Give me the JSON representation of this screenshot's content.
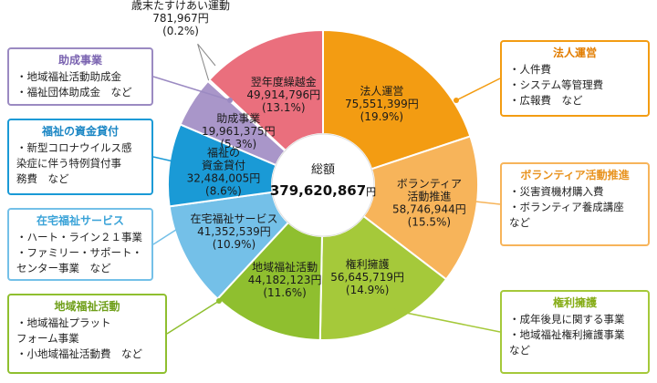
{
  "chart_data": {
    "type": "pie",
    "total_label": "総額",
    "total_value": "379,620,867",
    "total_unit": "円",
    "slices": [
      {
        "name": "法人運営",
        "amount": "75,551,399",
        "percent": 19.9,
        "percent_label": "(19.9%)",
        "color": "#f39c12"
      },
      {
        "name": "ボランティア\n活動推進",
        "amount": "58,746,944",
        "percent": 15.5,
        "percent_label": "(15.5%)",
        "color": "#f7b45a"
      },
      {
        "name": "権利擁護",
        "amount": "56,645,719",
        "percent": 14.9,
        "percent_label": "(14.9%)",
        "color": "#a5c93a"
      },
      {
        "name": "地域福祉活動",
        "amount": "44,182,123",
        "percent": 11.6,
        "percent_label": "(11.6%)",
        "color": "#8fbf2f"
      },
      {
        "name": "在宅福祉サービス",
        "amount": "41,352,539",
        "percent": 10.9,
        "percent_label": "(10.9%)",
        "color": "#74c0e8"
      },
      {
        "name": "福祉の\n資金貸付",
        "amount": "32,484,005",
        "percent": 8.6,
        "percent_label": "(8.6%)",
        "color": "#1a9ad6"
      },
      {
        "name": "助成事業",
        "amount": "19,961,375",
        "percent": 5.3,
        "percent_label": "(5.3%)",
        "color": "#a996c9"
      },
      {
        "name": "歳末たすけあい運動",
        "amount": "781,967",
        "percent": 0.2,
        "percent_label": "(0.2%)",
        "color": "#e86a8a"
      },
      {
        "name": "翌年度繰越金",
        "amount": "49,914,796",
        "percent": 13.1,
        "percent_label": "(13.1%)",
        "color": "#ea6f7d"
      }
    ],
    "unit": "円"
  },
  "callouts": {
    "left": [
      {
        "title": "助成事業",
        "items": [
          "地域福祉活動助成金",
          "福祉団体助成金　など"
        ],
        "color": "#9b8ac2",
        "title_color": "#7a63b0"
      },
      {
        "title": "福祉の資金貸付",
        "items": [
          "新型コロナウイルス感\n染症に伴う特例貸付事\n務費　など"
        ],
        "color": "#1a9ad6",
        "title_color": "#1a86c4"
      },
      {
        "title": "在宅福祉サービス",
        "items": [
          "ハート・ライン２１事業",
          "ファミリー・サポート・\nセンター事業　など"
        ],
        "color": "#74c0e8",
        "title_color": "#3aa3d8"
      },
      {
        "title": "地域福祉活動",
        "items": [
          "地域福祉プラット\nフォーム事業",
          "小地域福祉活動費　など"
        ],
        "color": "#8fbf2f",
        "title_color": "#6f9f1a"
      }
    ],
    "right": [
      {
        "title": "法人運営",
        "items": [
          "人件費",
          "システム等管理費",
          "広報費　など"
        ],
        "color": "#f39c12",
        "title_color": "#e27d00"
      },
      {
        "title": "ボランティア活動推進",
        "items": [
          "災害資機材購入費",
          "ボランティア養成講座\nなど"
        ],
        "color": "#f7b45a",
        "title_color": "#e8931f"
      },
      {
        "title": "権利擁護",
        "items": [
          "成年後見に関する事業",
          "地域福祉権利擁護事業\nなど"
        ],
        "color": "#a5c93a",
        "title_color": "#86ad17"
      }
    ]
  }
}
